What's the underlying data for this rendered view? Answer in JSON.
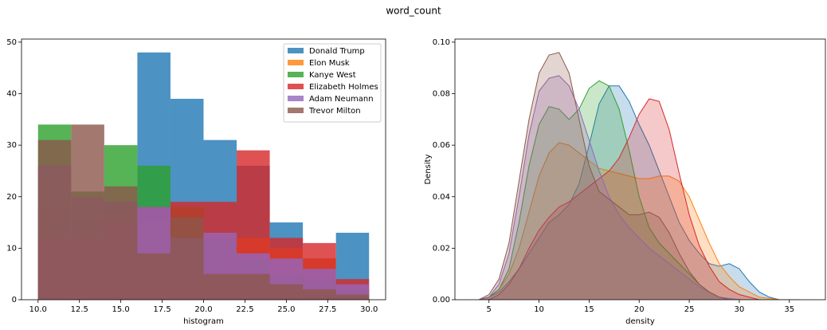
{
  "title": "word_count",
  "chart_data": [
    {
      "type": "histogram",
      "xlabel": "histogram",
      "bins": [
        10,
        12,
        14,
        16,
        18,
        20,
        22,
        24,
        26,
        28,
        30
      ],
      "series": [
        {
          "name": "Donald Trump",
          "color": "#1f77b4",
          "values": [
            18,
            16,
            19,
            48,
            39,
            31,
            26,
            15,
            8,
            13
          ]
        },
        {
          "name": "Elon Musk",
          "color": "#ff7f0e",
          "values": [
            25,
            20,
            18,
            15,
            16,
            13,
            12,
            10,
            8,
            3
          ]
        },
        {
          "name": "Kanye West",
          "color": "#2ca02c",
          "values": [
            34,
            21,
            30,
            26,
            18,
            12,
            8,
            5,
            4,
            2
          ]
        },
        {
          "name": "Elizabeth Holmes",
          "color": "#d62728",
          "values": [
            12,
            12,
            15,
            18,
            19,
            19,
            29,
            12,
            11,
            4
          ]
        },
        {
          "name": "Adam Neumann",
          "color": "#9467bd",
          "values": [
            26,
            20,
            19,
            18,
            12,
            13,
            9,
            8,
            6,
            3
          ]
        },
        {
          "name": "Trevor Milton",
          "color": "#8c564b",
          "values": [
            31,
            34,
            22,
            9,
            16,
            5,
            5,
            3,
            2,
            1
          ]
        }
      ],
      "xlim": [
        9,
        31
      ],
      "ylim": [
        0,
        50.6
      ],
      "xticks": [
        {
          "value": 10,
          "label": "10.0"
        },
        {
          "value": 12.5,
          "label": "12.5"
        },
        {
          "value": 15,
          "label": "15.0"
        },
        {
          "value": 17.5,
          "label": "17.5"
        },
        {
          "value": 20,
          "label": "20.0"
        },
        {
          "value": 22.5,
          "label": "22.5"
        },
        {
          "value": 25,
          "label": "25.0"
        },
        {
          "value": 27.5,
          "label": "27.5"
        },
        {
          "value": 30,
          "label": "30.0"
        }
      ],
      "yticks": [
        0,
        10,
        20,
        30,
        40,
        50
      ],
      "legend": "upper right"
    },
    {
      "type": "kde",
      "xlabel": "density",
      "ylabel": "Density",
      "x": [
        4,
        5,
        6,
        7,
        8,
        9,
        10,
        11,
        12,
        13,
        14,
        15,
        16,
        17,
        18,
        19,
        20,
        21,
        22,
        23,
        24,
        25,
        26,
        27,
        28,
        29,
        30,
        31,
        32,
        33,
        34,
        35,
        36
      ],
      "series": [
        {
          "name": "Donald Trump",
          "color": "#1f77b4",
          "values": [
            0,
            0.001,
            0.003,
            0.007,
            0.012,
            0.018,
            0.024,
            0.03,
            0.033,
            0.037,
            0.045,
            0.06,
            0.076,
            0.083,
            0.083,
            0.077,
            0.068,
            0.06,
            0.05,
            0.04,
            0.03,
            0.023,
            0.018,
            0.014,
            0.013,
            0.014,
            0.012,
            0.007,
            0.003,
            0.001,
            0,
            0,
            0
          ]
        },
        {
          "name": "Elon Musk",
          "color": "#ff7f0e",
          "values": [
            0,
            0.001,
            0.004,
            0.01,
            0.02,
            0.034,
            0.048,
            0.057,
            0.061,
            0.06,
            0.057,
            0.054,
            0.051,
            0.05,
            0.049,
            0.048,
            0.047,
            0.047,
            0.048,
            0.048,
            0.046,
            0.04,
            0.031,
            0.022,
            0.014,
            0.009,
            0.005,
            0.003,
            0.001,
            0.0005,
            0,
            0,
            0
          ]
        },
        {
          "name": "Kanye West",
          "color": "#2ca02c",
          "values": [
            0,
            0.001,
            0.004,
            0.012,
            0.03,
            0.052,
            0.068,
            0.075,
            0.074,
            0.07,
            0.074,
            0.082,
            0.085,
            0.083,
            0.074,
            0.058,
            0.04,
            0.028,
            0.022,
            0.018,
            0.014,
            0.01,
            0.006,
            0.003,
            0.001,
            0.0005,
            0,
            0,
            0,
            0,
            0,
            0,
            0
          ]
        },
        {
          "name": "Elizabeth Holmes",
          "color": "#d62728",
          "values": [
            0,
            0,
            0.002,
            0.006,
            0.012,
            0.02,
            0.027,
            0.032,
            0.036,
            0.038,
            0.041,
            0.044,
            0.047,
            0.05,
            0.055,
            0.063,
            0.072,
            0.078,
            0.077,
            0.066,
            0.049,
            0.033,
            0.021,
            0.013,
            0.007,
            0.004,
            0.002,
            0.001,
            0,
            0,
            0,
            0,
            0
          ]
        },
        {
          "name": "Adam Neumann",
          "color": "#9467bd",
          "values": [
            0,
            0.001,
            0.006,
            0.018,
            0.04,
            0.064,
            0.081,
            0.086,
            0.087,
            0.083,
            0.074,
            0.062,
            0.05,
            0.04,
            0.033,
            0.028,
            0.024,
            0.02,
            0.017,
            0.014,
            0.011,
            0.008,
            0.005,
            0.003,
            0.001,
            0.0005,
            0,
            0,
            0,
            0,
            0,
            0,
            0
          ]
        },
        {
          "name": "Trevor Milton",
          "color": "#8c564b",
          "values": [
            0,
            0.002,
            0.008,
            0.022,
            0.046,
            0.07,
            0.088,
            0.095,
            0.096,
            0.088,
            0.07,
            0.052,
            0.042,
            0.039,
            0.036,
            0.033,
            0.033,
            0.034,
            0.032,
            0.026,
            0.018,
            0.011,
            0.006,
            0.003,
            0.001,
            0,
            0,
            0,
            0,
            0,
            0,
            0,
            0
          ]
        }
      ],
      "xlim": [
        1.6,
        38.6
      ],
      "ylim": [
        0,
        0.1012
      ],
      "xticks": [
        5,
        10,
        15,
        20,
        25,
        30,
        35
      ],
      "yticks": [
        {
          "value": 0,
          "label": "0.00"
        },
        {
          "value": 0.02,
          "label": "0.02"
        },
        {
          "value": 0.04,
          "label": "0.04"
        },
        {
          "value": 0.06,
          "label": "0.06"
        },
        {
          "value": 0.08,
          "label": "0.08"
        },
        {
          "value": 0.1,
          "label": "0.10"
        }
      ]
    }
  ]
}
